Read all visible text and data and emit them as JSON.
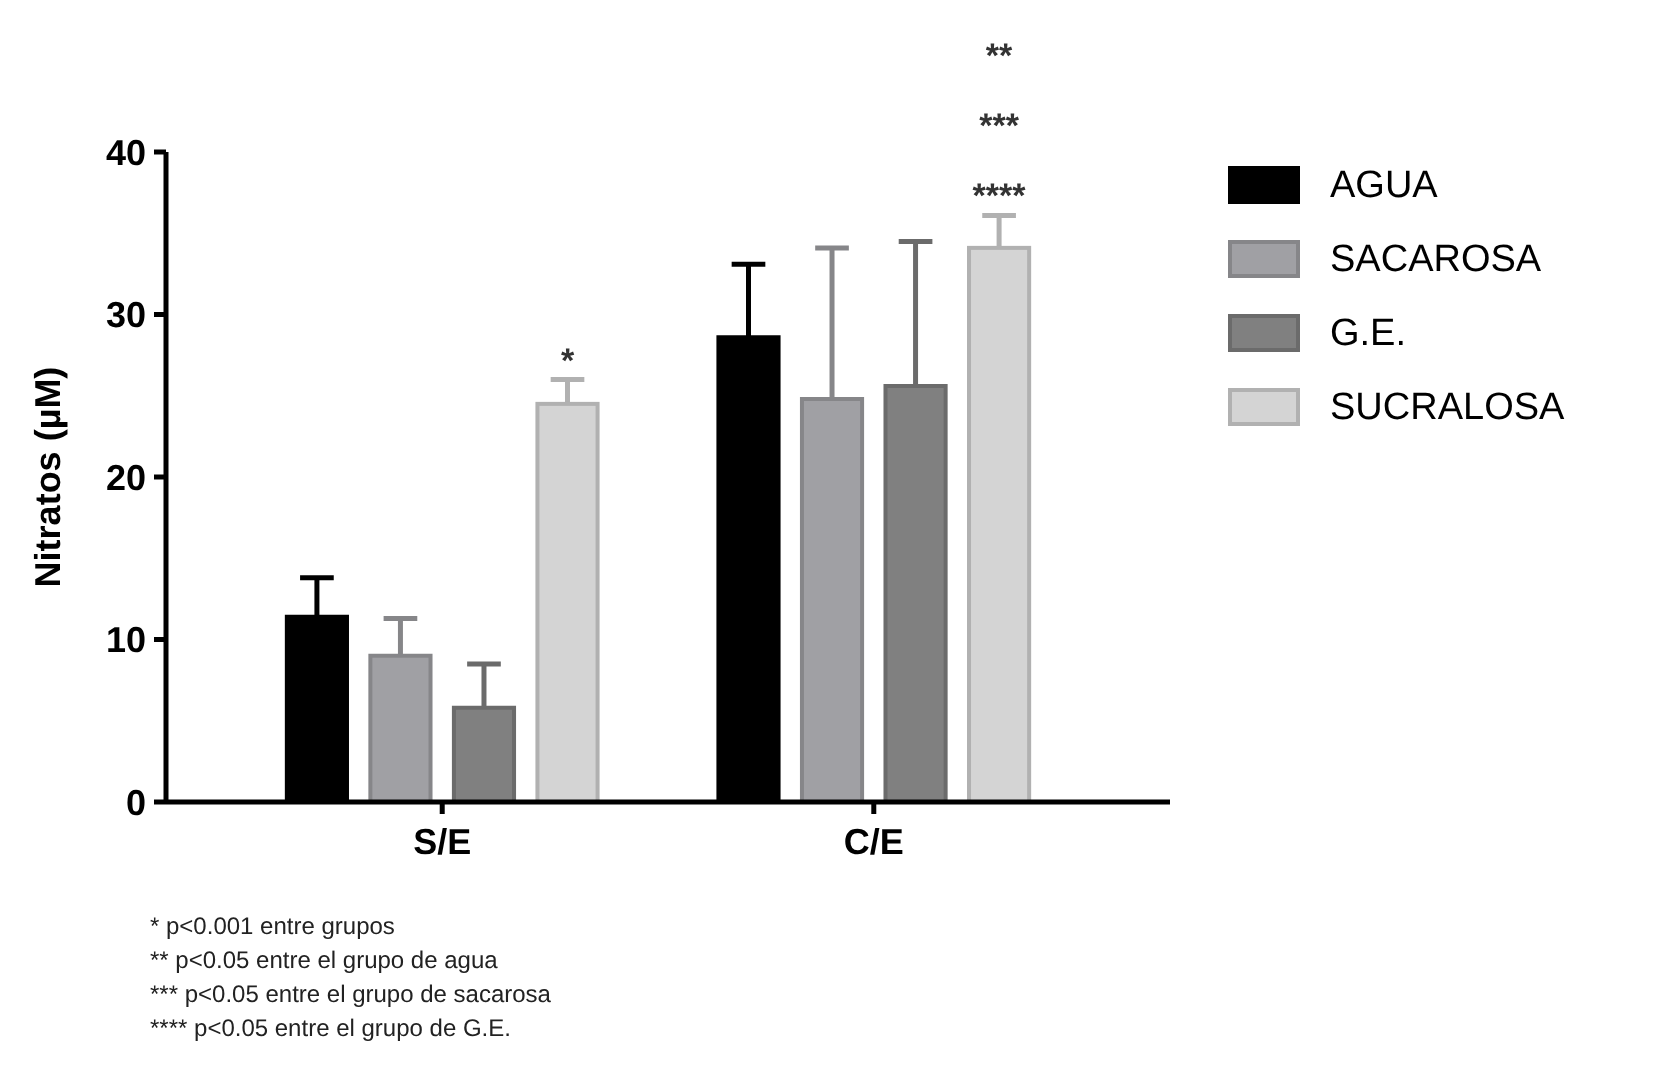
{
  "chart_data": {
    "type": "bar",
    "ylabel": "Nitratos (µM)",
    "categories": [
      "S/E",
      "C/E"
    ],
    "series": [
      {
        "name": "AGUA",
        "color": "#000000",
        "values": [
          11.4,
          28.6
        ],
        "errors": [
          2.4,
          4.5
        ]
      },
      {
        "name": "SACAROSA",
        "color": "#a0a0a4",
        "values": [
          9.0,
          24.8
        ],
        "errors": [
          2.3,
          9.3
        ]
      },
      {
        "name": "G.E.",
        "color": "#808080",
        "values": [
          5.8,
          25.6
        ],
        "errors": [
          2.7,
          8.9
        ]
      },
      {
        "name": "SUCRALOSA",
        "color": "#d4d4d4",
        "values": [
          24.5,
          34.1
        ],
        "errors": [
          1.5,
          2.0
        ]
      }
    ],
    "ylim": [
      0,
      40
    ],
    "yticks": [
      0,
      10,
      20,
      30,
      40
    ],
    "grid": false,
    "legend": "right",
    "annotations": [
      "*",
      "****",
      "***",
      "**",
      "* p<0.001 entre grupos",
      "** p<0.05 entre el grupo de agua",
      "*** p<0.05 entre el grupo de sacarosa",
      "**** p<0.05 entre el grupo de G.E."
    ]
  }
}
